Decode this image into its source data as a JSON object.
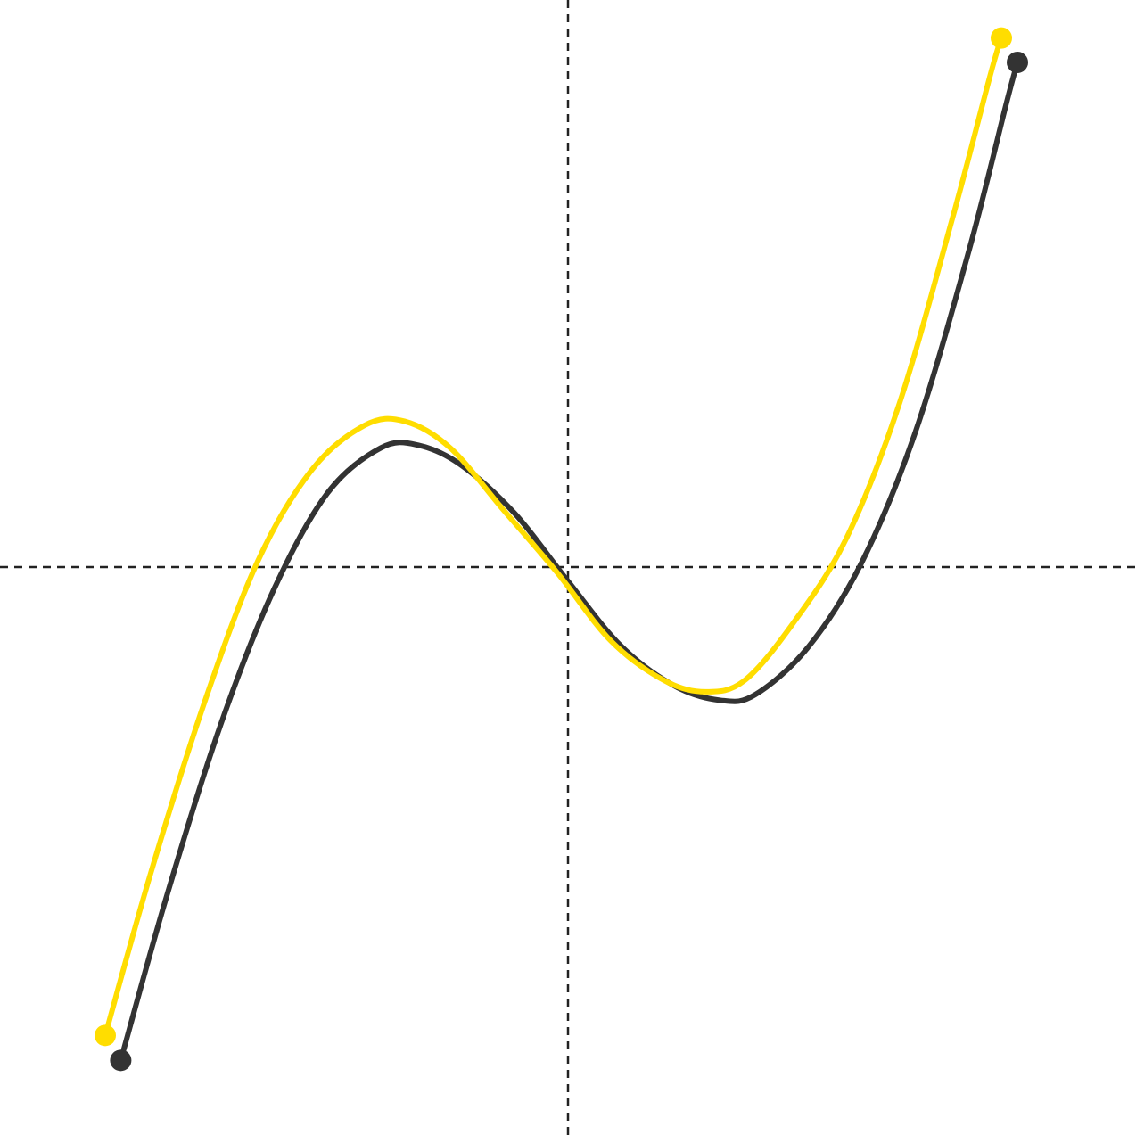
{
  "chart_data": {
    "type": "line",
    "title": "",
    "xlabel": "",
    "ylabel": "",
    "grid": false,
    "legend": "none",
    "xlim": [
      -1,
      1
    ],
    "ylim": [
      -1,
      1
    ],
    "axes_style": "dashed lines through origin",
    "series": [
      {
        "color": "#333333",
        "points": [
          [
            -0.836,
            -0.87
          ],
          [
            -0.75,
            -0.58
          ],
          [
            -0.65,
            -0.28
          ],
          [
            -0.55,
            -0.04
          ],
          [
            -0.45,
            0.13
          ],
          [
            -0.35,
            0.21
          ],
          [
            -0.28,
            0.215
          ],
          [
            -0.2,
            0.18
          ],
          [
            -0.1,
            0.095
          ],
          [
            0.0,
            -0.025
          ],
          [
            0.1,
            -0.14
          ],
          [
            0.2,
            -0.21
          ],
          [
            0.285,
            -0.235
          ],
          [
            0.35,
            -0.225
          ],
          [
            0.45,
            -0.14
          ],
          [
            0.55,
            0.01
          ],
          [
            0.65,
            0.24
          ],
          [
            0.75,
            0.56
          ],
          [
            0.82,
            0.82
          ],
          [
            0.84,
            0.89
          ]
        ]
      },
      {
        "color": "#FFDD00",
        "points": [
          [
            -0.865,
            -0.826
          ],
          [
            -0.78,
            -0.54
          ],
          [
            -0.68,
            -0.24
          ],
          [
            -0.58,
            0.01
          ],
          [
            -0.48,
            0.17
          ],
          [
            -0.38,
            0.25
          ],
          [
            -0.305,
            0.257
          ],
          [
            -0.22,
            0.21
          ],
          [
            -0.12,
            0.1
          ],
          [
            -0.02,
            -0.01
          ],
          [
            0.08,
            -0.13
          ],
          [
            0.18,
            -0.2
          ],
          [
            0.258,
            -0.22
          ],
          [
            0.33,
            -0.2
          ],
          [
            0.42,
            -0.1
          ],
          [
            0.52,
            0.05
          ],
          [
            0.62,
            0.29
          ],
          [
            0.72,
            0.62
          ],
          [
            0.79,
            0.87
          ],
          [
            0.81,
            0.933
          ]
        ]
      }
    ]
  }
}
